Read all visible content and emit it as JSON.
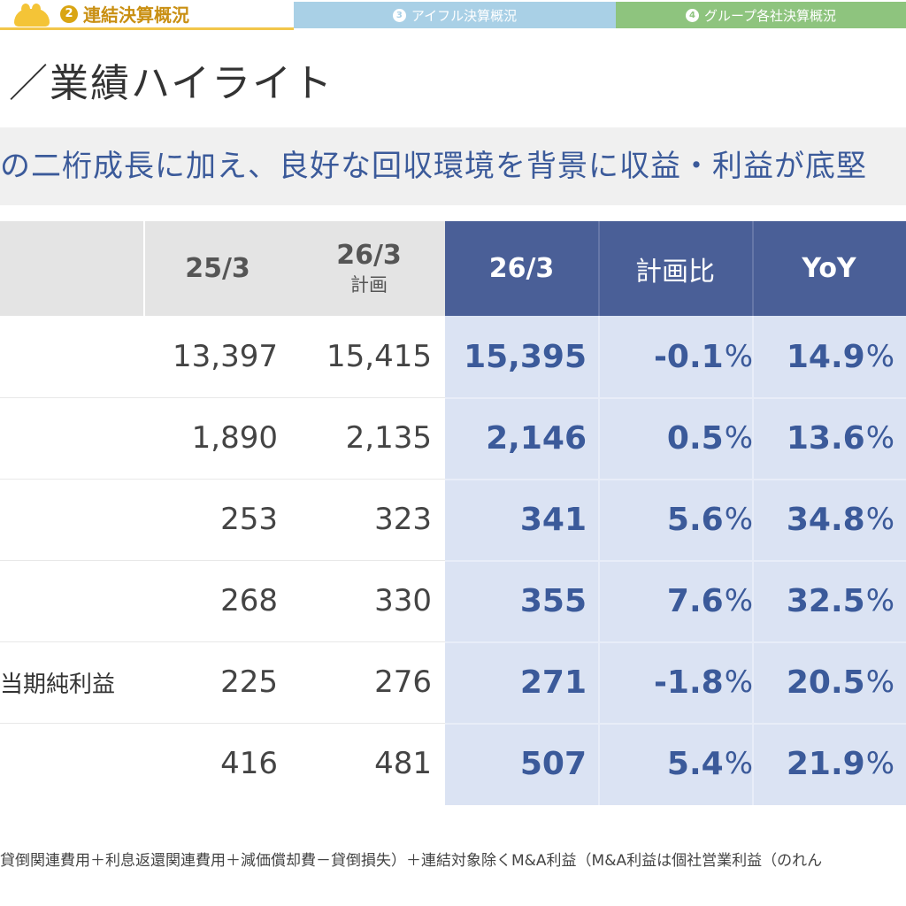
{
  "tabs": {
    "active": {
      "number": "2",
      "label": "連結決算概況"
    },
    "tab3": {
      "number": "3",
      "label": "アイフル決算概況"
    },
    "tab4": {
      "number": "4",
      "label": "グループ各社決算概況"
    }
  },
  "page": {
    "title": "／業績ハイライト",
    "subtitle": "の二桁成長に加え、良好な回収環境を背景に収益・利益が底堅"
  },
  "table": {
    "headers": {
      "c1": {
        "main": "25/3",
        "sub": ""
      },
      "c2": {
        "main": "26/3",
        "sub": "計画"
      },
      "c3": {
        "main": "26/3",
        "sub": ""
      },
      "c4": {
        "main": "計画比",
        "sub": ""
      },
      "c5": {
        "main": "YoY",
        "sub": ""
      }
    },
    "rows": [
      {
        "label": "",
        "c1": "13,397",
        "c2": "15,415",
        "c3": "15,395",
        "c4": "-0.1",
        "c5": "14.9"
      },
      {
        "label": "",
        "c1": "1,890",
        "c2": "2,135",
        "c3": "2,146",
        "c4": "0.5",
        "c5": "13.6"
      },
      {
        "label": "",
        "c1": "253",
        "c2": "323",
        "c3": "341",
        "c4": "5.6",
        "c5": "34.8"
      },
      {
        "label": "",
        "c1": "268",
        "c2": "330",
        "c3": "355",
        "c4": "7.6",
        "c5": "32.5"
      },
      {
        "label": "当期純利益",
        "c1": "225",
        "c2": "276",
        "c3": "271",
        "c4": "-1.8",
        "c5": "20.5"
      },
      {
        "label": "",
        "c1": "416",
        "c2": "481",
        "c3": "507",
        "c4": "5.4",
        "c5": "21.9"
      }
    ],
    "pct_unit": "%"
  },
  "footnote": "貸倒関連費用＋利息返還関連費用＋減価償却費－貸倒損失）＋連結対象除くM&A利益（M&A利益は個社営業利益（のれん",
  "colors": {
    "accent_yellow": "#f4c437",
    "header_blue": "#4a5f97",
    "body_blue": "#dbe3f3",
    "text_blue": "#3b5a9a"
  }
}
